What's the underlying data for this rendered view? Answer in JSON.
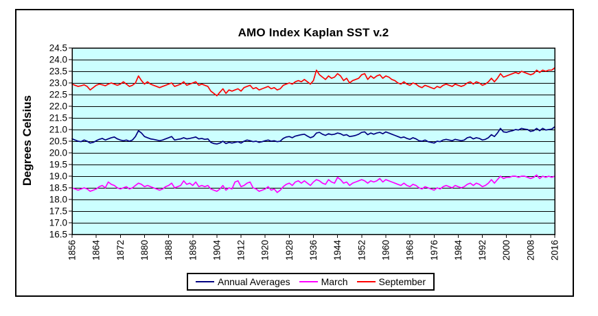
{
  "window": {
    "background": "#FFFFFF",
    "frame_border_color": "#000000"
  },
  "chart_data": {
    "type": "line",
    "title": "AMO Index Kaplan SST v.2",
    "xlabel": "",
    "ylabel": "Degrees Celsius",
    "ylim": [
      16.5,
      24.5
    ],
    "y_tick_step": 0.5,
    "y_tick_labels": [
      "24.5",
      "24.0",
      "23.5",
      "23.0",
      "22.5",
      "22.0",
      "21.5",
      "21.0",
      "20.5",
      "20.0",
      "19.5",
      "19.0",
      "18.5",
      "18.0",
      "17.5",
      "17.0",
      "16.5"
    ],
    "x_start": 1856,
    "x_end": 2016,
    "x_tick_labels": [
      "1856",
      "1864",
      "1872",
      "1880",
      "1888",
      "1896",
      "1904",
      "1912",
      "1920",
      "1928",
      "1936",
      "1944",
      "1952",
      "1960",
      "1968",
      "1976",
      "1984",
      "1992",
      "2000",
      "2008",
      "2016"
    ],
    "plot_bg": "#CCFFFF",
    "grid": true,
    "gridline_color": "#000000",
    "legend_position": "bottom",
    "series": [
      {
        "name": "Annual Averages",
        "color": "#000080",
        "values": [
          20.6,
          20.55,
          20.5,
          20.48,
          20.55,
          20.5,
          20.42,
          20.45,
          20.52,
          20.58,
          20.62,
          20.55,
          20.6,
          20.65,
          20.68,
          20.6,
          20.55,
          20.52,
          20.55,
          20.5,
          20.55,
          20.7,
          20.95,
          20.85,
          20.7,
          20.65,
          20.6,
          20.58,
          20.55,
          20.52,
          20.55,
          20.6,
          20.65,
          20.7,
          20.55,
          20.58,
          20.6,
          20.65,
          20.6,
          20.62,
          20.65,
          20.68,
          20.6,
          20.62,
          20.58,
          20.6,
          20.45,
          20.4,
          20.38,
          20.42,
          20.5,
          20.4,
          20.45,
          20.42,
          20.45,
          20.48,
          20.42,
          20.5,
          20.55,
          20.52,
          20.48,
          20.5,
          20.45,
          20.48,
          20.52,
          20.55,
          20.5,
          20.52,
          20.48,
          20.5,
          20.62,
          20.68,
          20.7,
          20.65,
          20.72,
          20.75,
          20.78,
          20.8,
          20.72,
          20.65,
          20.7,
          20.85,
          20.88,
          20.8,
          20.75,
          20.82,
          20.78,
          20.8,
          20.85,
          20.82,
          20.75,
          20.78,
          20.7,
          20.72,
          20.75,
          20.8,
          20.88,
          20.9,
          20.78,
          20.85,
          20.8,
          20.85,
          20.88,
          20.82,
          20.9,
          20.85,
          20.8,
          20.75,
          20.7,
          20.65,
          20.68,
          20.62,
          20.58,
          20.65,
          20.6,
          20.52,
          20.5,
          20.55,
          20.48,
          20.45,
          20.42,
          20.5,
          20.48,
          20.55,
          20.58,
          20.55,
          20.52,
          20.58,
          20.55,
          20.52,
          20.55,
          20.65,
          20.68,
          20.6,
          20.65,
          20.62,
          20.55,
          20.58,
          20.65,
          20.78,
          20.7,
          20.85,
          21.05,
          20.9,
          20.88,
          20.92,
          20.95,
          21.0,
          20.98,
          21.05,
          21.02,
          21.0,
          20.92,
          20.95,
          21.05,
          20.95,
          21.05,
          20.98,
          21.0,
          21.02,
          21.12
        ]
      },
      {
        "name": "March",
        "color": "#FF00FF",
        "values": [
          18.5,
          18.45,
          18.4,
          18.45,
          18.5,
          18.45,
          18.35,
          18.4,
          18.45,
          18.55,
          18.6,
          18.5,
          18.75,
          18.65,
          18.6,
          18.5,
          18.45,
          18.5,
          18.55,
          18.45,
          18.5,
          18.6,
          18.7,
          18.65,
          18.55,
          18.6,
          18.55,
          18.5,
          18.45,
          18.4,
          18.45,
          18.55,
          18.6,
          18.7,
          18.5,
          18.55,
          18.6,
          18.8,
          18.65,
          18.7,
          18.6,
          18.75,
          18.55,
          18.6,
          18.55,
          18.6,
          18.45,
          18.4,
          18.35,
          18.45,
          18.6,
          18.4,
          18.5,
          18.45,
          18.75,
          18.8,
          18.55,
          18.6,
          18.7,
          18.75,
          18.5,
          18.45,
          18.35,
          18.4,
          18.45,
          18.55,
          18.4,
          18.45,
          18.3,
          18.4,
          18.55,
          18.65,
          18.7,
          18.6,
          18.75,
          18.8,
          18.7,
          18.8,
          18.7,
          18.6,
          18.75,
          18.85,
          18.8,
          18.7,
          18.65,
          18.85,
          18.75,
          18.7,
          18.95,
          18.85,
          18.7,
          18.75,
          18.6,
          18.7,
          18.75,
          18.8,
          18.85,
          18.8,
          18.7,
          18.8,
          18.75,
          18.8,
          18.9,
          18.75,
          18.85,
          18.8,
          18.75,
          18.7,
          18.65,
          18.6,
          18.7,
          18.6,
          18.55,
          18.65,
          18.6,
          18.5,
          18.45,
          18.55,
          18.5,
          18.45,
          18.4,
          18.5,
          18.45,
          18.55,
          18.6,
          18.55,
          18.5,
          18.6,
          18.55,
          18.5,
          18.55,
          18.65,
          18.7,
          18.6,
          18.7,
          18.65,
          18.55,
          18.6,
          18.7,
          18.85,
          18.7,
          18.85,
          19.0,
          18.9,
          18.95,
          18.95,
          19.0,
          19.0,
          18.95,
          19.0,
          19.0,
          18.95,
          18.9,
          18.95,
          19.05,
          18.9,
          19.0,
          18.95,
          19.0,
          18.95,
          19.0
        ]
      },
      {
        "name": "September",
        "color": "#FF0000",
        "values": [
          22.95,
          22.9,
          22.85,
          22.88,
          22.92,
          22.85,
          22.7,
          22.8,
          22.9,
          22.95,
          22.92,
          22.88,
          22.95,
          23.0,
          22.95,
          22.9,
          22.95,
          23.05,
          22.95,
          22.85,
          22.9,
          23.0,
          23.3,
          23.1,
          22.95,
          23.05,
          22.95,
          22.9,
          22.85,
          22.8,
          22.85,
          22.9,
          22.95,
          23.0,
          22.85,
          22.9,
          22.95,
          23.05,
          22.9,
          22.95,
          23.0,
          23.05,
          22.9,
          22.95,
          22.9,
          22.85,
          22.65,
          22.55,
          22.45,
          22.6,
          22.75,
          22.55,
          22.7,
          22.65,
          22.7,
          22.75,
          22.65,
          22.8,
          22.85,
          22.9,
          22.75,
          22.8,
          22.7,
          22.75,
          22.8,
          22.85,
          22.75,
          22.8,
          22.7,
          22.75,
          22.9,
          22.95,
          23.0,
          22.95,
          23.05,
          23.1,
          23.05,
          23.15,
          23.05,
          22.95,
          23.1,
          23.55,
          23.35,
          23.25,
          23.15,
          23.3,
          23.2,
          23.25,
          23.4,
          23.3,
          23.1,
          23.2,
          23.0,
          23.1,
          23.15,
          23.2,
          23.35,
          23.4,
          23.15,
          23.3,
          23.2,
          23.3,
          23.35,
          23.2,
          23.3,
          23.25,
          23.15,
          23.1,
          23.0,
          22.95,
          23.05,
          22.95,
          22.9,
          23.0,
          22.95,
          22.85,
          22.8,
          22.9,
          22.85,
          22.8,
          22.75,
          22.85,
          22.8,
          22.9,
          22.95,
          22.9,
          22.85,
          22.95,
          22.9,
          22.85,
          22.9,
          23.0,
          23.05,
          22.95,
          23.05,
          23.0,
          22.9,
          22.95,
          23.05,
          23.2,
          23.05,
          23.2,
          23.4,
          23.25,
          23.3,
          23.35,
          23.4,
          23.45,
          23.4,
          23.5,
          23.45,
          23.4,
          23.35,
          23.4,
          23.55,
          23.45,
          23.55,
          23.5,
          23.55,
          23.55,
          23.65
        ]
      }
    ]
  }
}
